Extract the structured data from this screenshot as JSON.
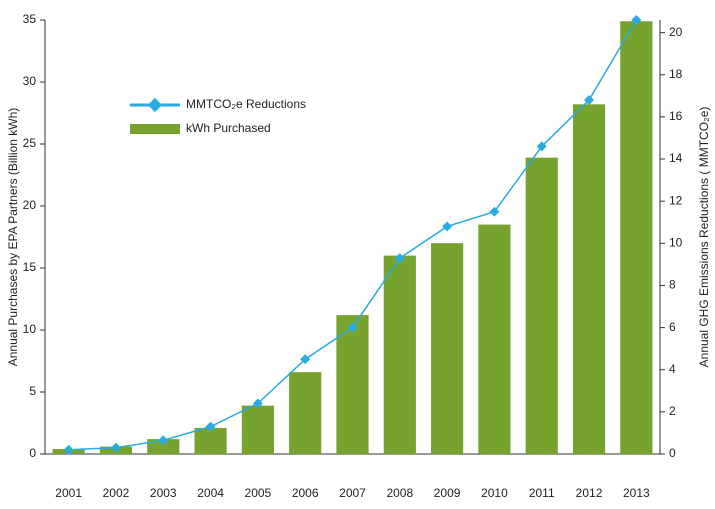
{
  "chart_data": {
    "type": "bar-line",
    "categories": [
      "2001",
      "2002",
      "2003",
      "2004",
      "2005",
      "2006",
      "2007",
      "2008",
      "2009",
      "2010",
      "2011",
      "2012",
      "2013"
    ],
    "series": [
      {
        "name": "kWh Purchased",
        "type": "bar",
        "color": "#76a22e",
        "values": [
          0.4,
          0.6,
          1.2,
          2.1,
          3.9,
          6.6,
          11.2,
          16.0,
          17.0,
          18.5,
          23.9,
          28.2,
          34.9
        ]
      },
      {
        "name": "MMTCO₂e Reductions",
        "type": "line",
        "axis": "y2",
        "color": "#29abe2",
        "values": [
          0.2,
          0.3,
          0.65,
          1.3,
          2.4,
          4.5,
          6.0,
          9.3,
          10.8,
          11.5,
          14.6,
          16.8,
          20.6
        ]
      }
    ],
    "ylabel": "Annual Purchases by EPA Partners (Billion kWh)",
    "y2label": "Annual GHG Emissions Reductions ( MMTCO₂e)",
    "ylim": [
      0,
      35
    ],
    "yticks": [
      0,
      5,
      10,
      15,
      20,
      25,
      30,
      35
    ],
    "y2lim": [
      0,
      20.6
    ],
    "y2ticks": [
      0,
      2,
      4,
      6,
      8,
      10,
      12,
      14,
      16,
      18,
      20
    ],
    "grid": false,
    "legend": "upper left"
  }
}
